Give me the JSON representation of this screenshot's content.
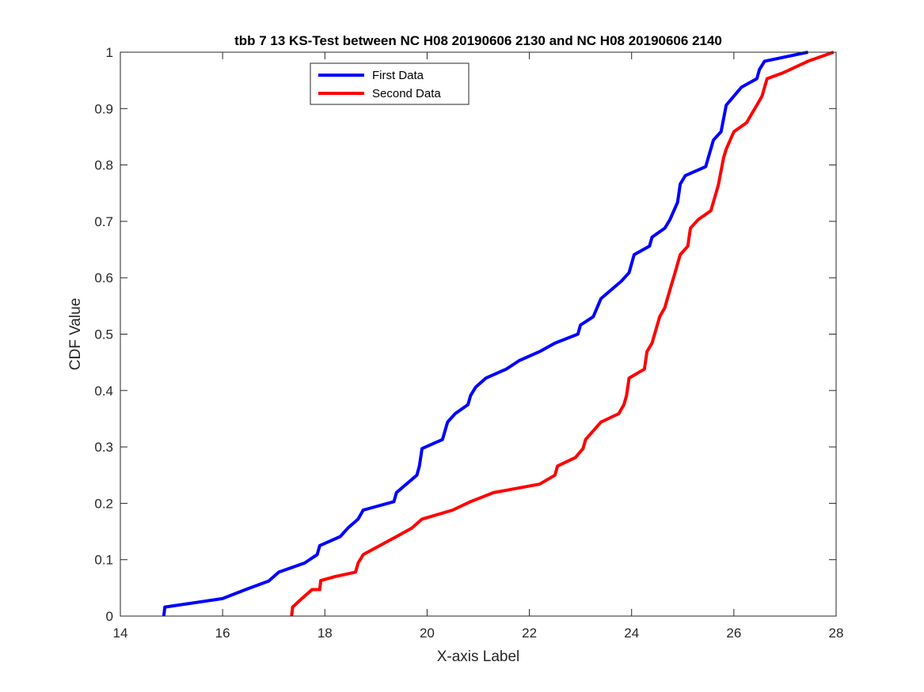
{
  "chart_data": {
    "type": "line",
    "title": "tbb 7 13 KS-Test between NC H08 20190606 2130 and NC H08 20190606 2140",
    "xlabel": "X-axis Label",
    "ylabel": "CDF Value",
    "xlim": [
      14,
      28
    ],
    "ylim": [
      0,
      1
    ],
    "xticks": [
      14,
      16,
      18,
      20,
      22,
      24,
      26,
      28
    ],
    "yticks": [
      0,
      0.1,
      0.2,
      0.3,
      0.4,
      0.5,
      0.6,
      0.7,
      0.8,
      0.9,
      1
    ],
    "xtick_labels": [
      "14",
      "16",
      "18",
      "20",
      "22",
      "24",
      "26",
      "28"
    ],
    "ytick_labels": [
      "0",
      "0.1",
      "0.2",
      "0.3",
      "0.4",
      "0.5",
      "0.6",
      "0.7",
      "0.8",
      "0.9",
      "1"
    ],
    "grid": false,
    "legend_position": "top-left",
    "series": [
      {
        "name": "First Data",
        "color": "#0000ff",
        "x": [
          14.85,
          14.87,
          16.0,
          16.45,
          16.9,
          17.0,
          17.1,
          17.6,
          17.85,
          17.9,
          18.3,
          18.45,
          18.65,
          18.75,
          19.35,
          19.4,
          19.8,
          19.85,
          19.9,
          20.3,
          20.4,
          20.55,
          20.8,
          20.85,
          20.95,
          21.15,
          21.55,
          21.8,
          22.2,
          22.5,
          22.95,
          23.0,
          23.25,
          23.4,
          23.8,
          23.95,
          24.05,
          24.35,
          24.4,
          24.65,
          24.75,
          24.9,
          24.95,
          25.05,
          25.45,
          25.5,
          25.6,
          25.75,
          25.85,
          26.0,
          26.15,
          26.45,
          26.5,
          26.6,
          27.45
        ],
        "y": [
          0.0,
          0.016,
          0.031,
          0.047,
          0.062,
          0.07,
          0.078,
          0.094,
          0.109,
          0.125,
          0.141,
          0.156,
          0.172,
          0.188,
          0.203,
          0.219,
          0.25,
          0.266,
          0.297,
          0.313,
          0.344,
          0.359,
          0.375,
          0.391,
          0.406,
          0.422,
          0.438,
          0.453,
          0.469,
          0.484,
          0.5,
          0.516,
          0.531,
          0.563,
          0.594,
          0.609,
          0.641,
          0.656,
          0.672,
          0.688,
          0.703,
          0.734,
          0.766,
          0.781,
          0.797,
          0.813,
          0.844,
          0.859,
          0.906,
          0.922,
          0.938,
          0.953,
          0.969,
          0.984,
          1.0
        ]
      },
      {
        "name": "Second Data",
        "color": "#ff0000",
        "x": [
          17.35,
          17.37,
          17.55,
          17.75,
          17.9,
          17.92,
          18.2,
          18.6,
          18.65,
          18.75,
          19.4,
          19.7,
          19.9,
          20.5,
          20.85,
          21.3,
          22.2,
          22.5,
          22.55,
          22.9,
          23.05,
          23.1,
          23.4,
          23.75,
          23.85,
          23.9,
          23.95,
          24.25,
          24.3,
          24.4,
          24.45,
          24.55,
          24.65,
          24.7,
          24.8,
          24.85,
          24.9,
          24.95,
          25.1,
          25.15,
          25.3,
          25.55,
          25.65,
          25.7,
          25.8,
          25.85,
          26.0,
          26.25,
          26.35,
          26.45,
          26.55,
          26.65,
          26.95,
          27.45,
          27.95
        ],
        "y": [
          0.0,
          0.016,
          0.031,
          0.047,
          0.047,
          0.063,
          0.07,
          0.078,
          0.094,
          0.109,
          0.141,
          0.156,
          0.172,
          0.188,
          0.203,
          0.219,
          0.234,
          0.25,
          0.266,
          0.281,
          0.297,
          0.313,
          0.344,
          0.359,
          0.375,
          0.391,
          0.422,
          0.438,
          0.469,
          0.484,
          0.5,
          0.531,
          0.547,
          0.563,
          0.594,
          0.609,
          0.625,
          0.641,
          0.656,
          0.688,
          0.703,
          0.719,
          0.75,
          0.766,
          0.813,
          0.828,
          0.859,
          0.875,
          0.891,
          0.906,
          0.922,
          0.953,
          0.963,
          0.984,
          1.0
        ]
      }
    ]
  }
}
